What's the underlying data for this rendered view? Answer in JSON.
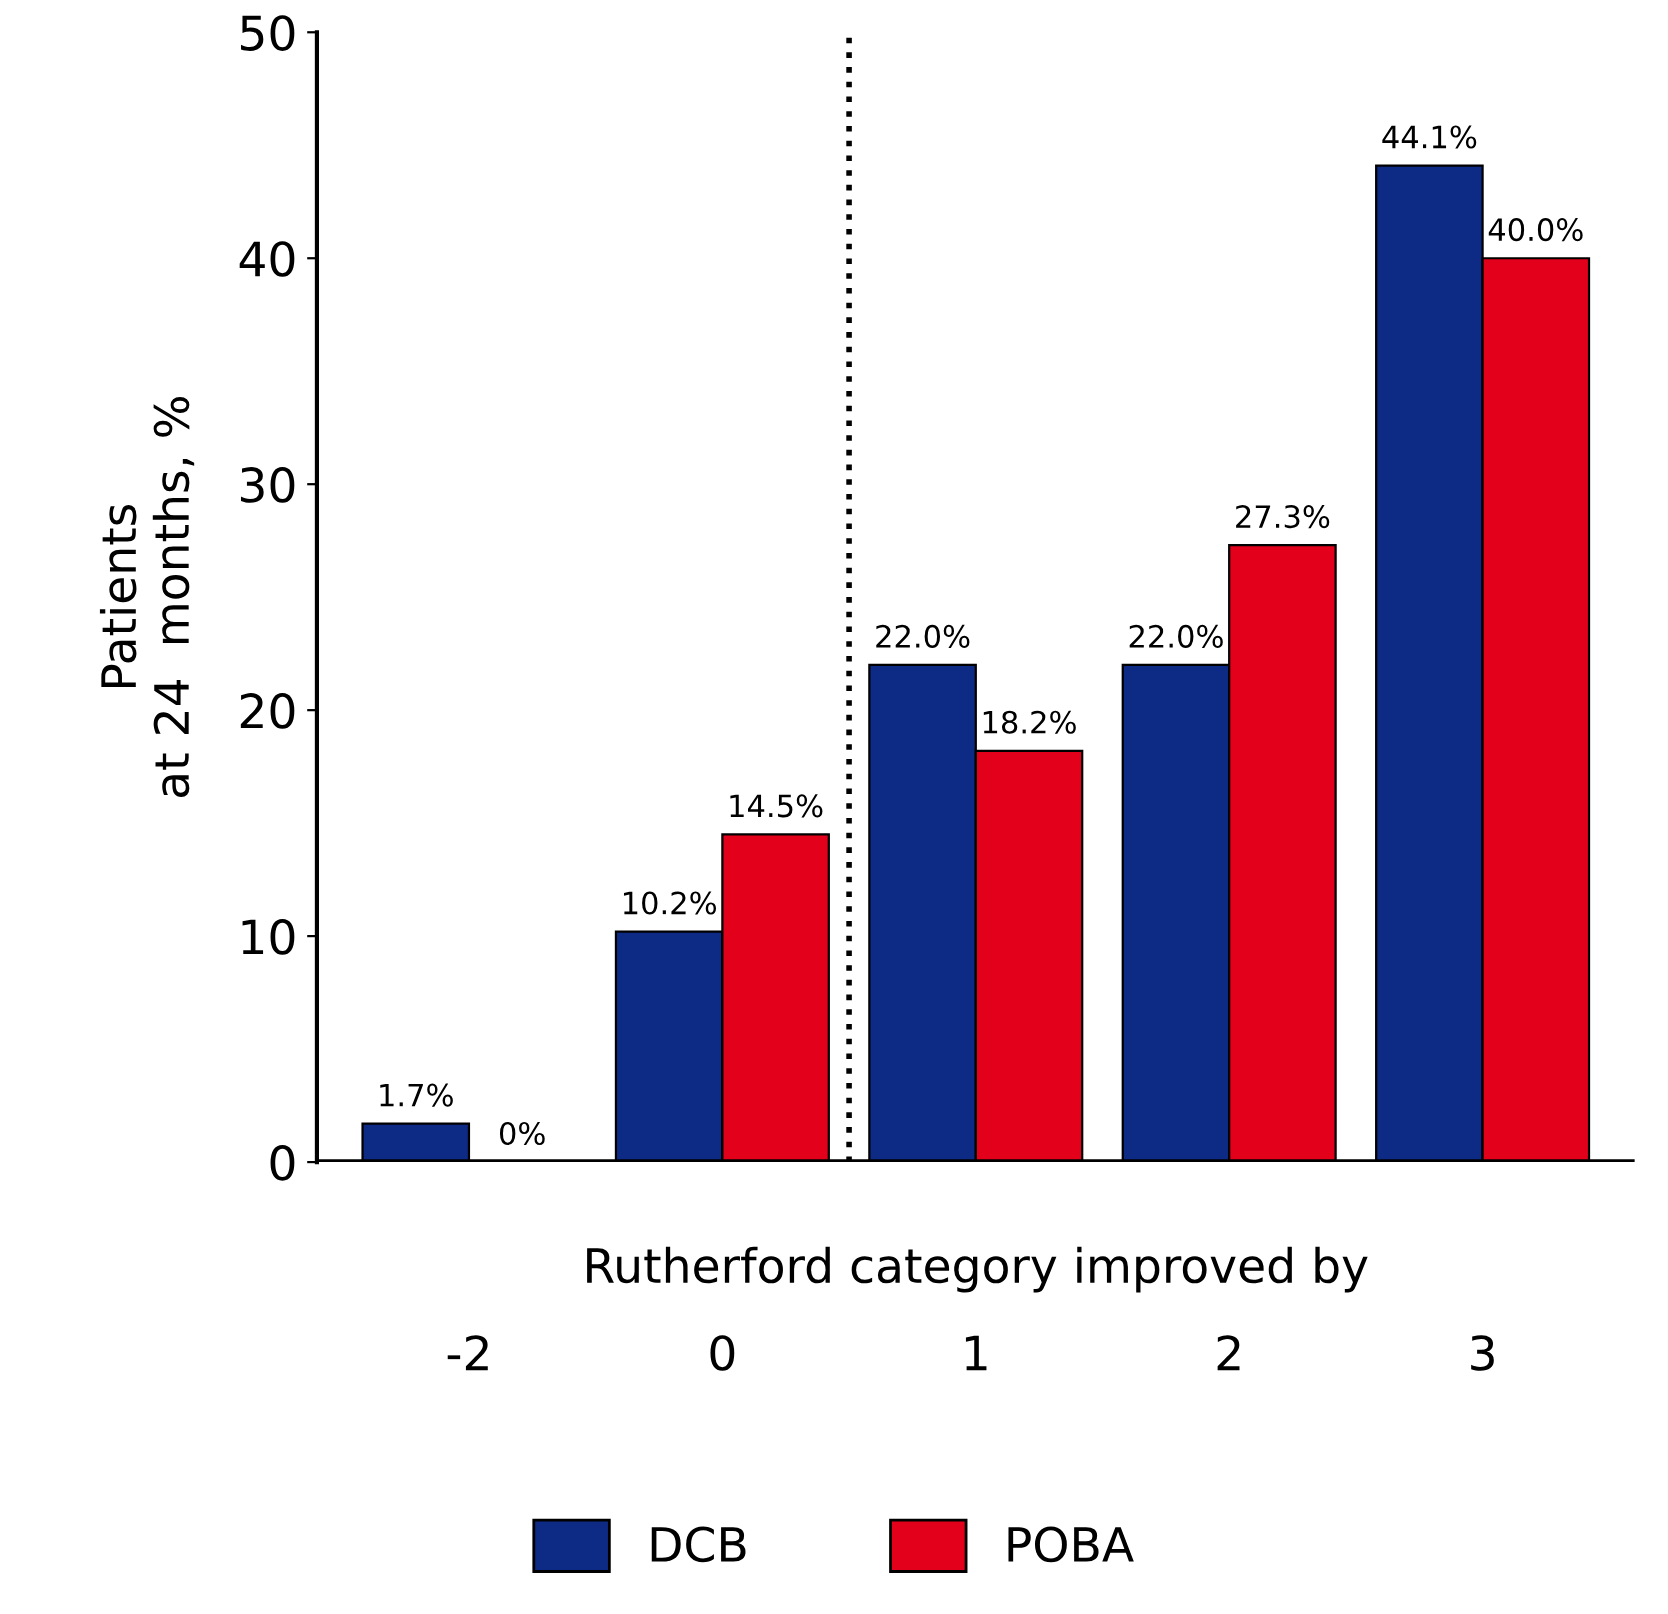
{
  "chart_data": {
    "type": "bar",
    "categories": [
      "-2",
      "0",
      "1",
      "2",
      "3"
    ],
    "xlabel": "Rutherford category improved by",
    "ylabel": "Patients\nat 24  months, %",
    "series": [
      {
        "name": "DCB",
        "color": "#0d2a85",
        "values": [
          1.7,
          10.2,
          22.0,
          22.0,
          44.1
        ],
        "value_labels": [
          "1.7%",
          "10.2%",
          "22.0%",
          "22.0%",
          "44.1%"
        ]
      },
      {
        "name": "POBA",
        "color": "#e2001a",
        "values": [
          0,
          14.5,
          18.2,
          27.3,
          40.0
        ],
        "value_labels": [
          "0%",
          "14.5%",
          "18.2%",
          "27.3%",
          "40.0%"
        ]
      }
    ],
    "ylim": [
      0,
      50
    ],
    "yticks": [
      0,
      10,
      20,
      30,
      40,
      50
    ],
    "grid": false,
    "legend": "bottom"
  }
}
